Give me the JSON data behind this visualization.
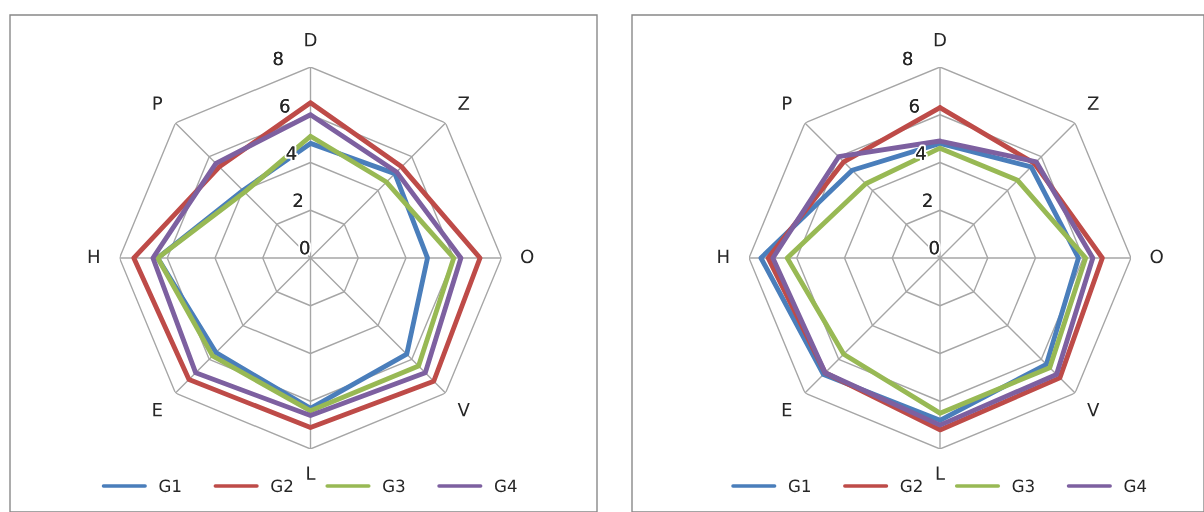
{
  "chart_data": [
    {
      "type": "radar",
      "categories": [
        "D",
        "Z",
        "O",
        "V",
        "L",
        "E",
        "H",
        "P"
      ],
      "ylim": [
        0,
        8
      ],
      "yticks": [
        0,
        2,
        4,
        6,
        8
      ],
      "grid": true,
      "legend": "bottom",
      "series": [
        {
          "name": "G1",
          "color": "#4a7ebb",
          "values": [
            4.8,
            5.0,
            4.9,
            5.7,
            6.3,
            5.6,
            6.4,
            4.0
          ]
        },
        {
          "name": "G2",
          "color": "#be4b48",
          "values": [
            6.5,
            5.4,
            7.1,
            7.3,
            7.1,
            7.2,
            7.4,
            5.4
          ]
        },
        {
          "name": "G3",
          "color": "#98b954",
          "values": [
            5.1,
            4.5,
            6.0,
            6.4,
            6.4,
            5.8,
            6.4,
            3.9
          ]
        },
        {
          "name": "G4",
          "color": "#7d60a0",
          "values": [
            6.0,
            5.1,
            6.3,
            6.8,
            6.6,
            6.8,
            6.6,
            5.6
          ]
        }
      ]
    },
    {
      "type": "radar",
      "categories": [
        "D",
        "Z",
        "O",
        "V",
        "L",
        "E",
        "H",
        "P"
      ],
      "ylim": [
        0,
        8
      ],
      "yticks": [
        0,
        2,
        4,
        6,
        8
      ],
      "grid": true,
      "legend": "bottom",
      "series": [
        {
          "name": "G1",
          "color": "#4a7ebb",
          "values": [
            4.8,
            5.4,
            5.8,
            6.3,
            6.8,
            6.9,
            7.5,
            5.2
          ]
        },
        {
          "name": "G2",
          "color": "#be4b48",
          "values": [
            6.3,
            5.6,
            6.8,
            7.1,
            7.2,
            6.8,
            7.2,
            5.7
          ]
        },
        {
          "name": "G3",
          "color": "#98b954",
          "values": [
            4.6,
            4.6,
            6.1,
            6.5,
            6.5,
            5.7,
            6.4,
            4.4
          ]
        },
        {
          "name": "G4",
          "color": "#7d60a0",
          "values": [
            4.9,
            5.7,
            6.4,
            6.9,
            7.0,
            6.8,
            7.0,
            6.0
          ]
        }
      ]
    }
  ]
}
